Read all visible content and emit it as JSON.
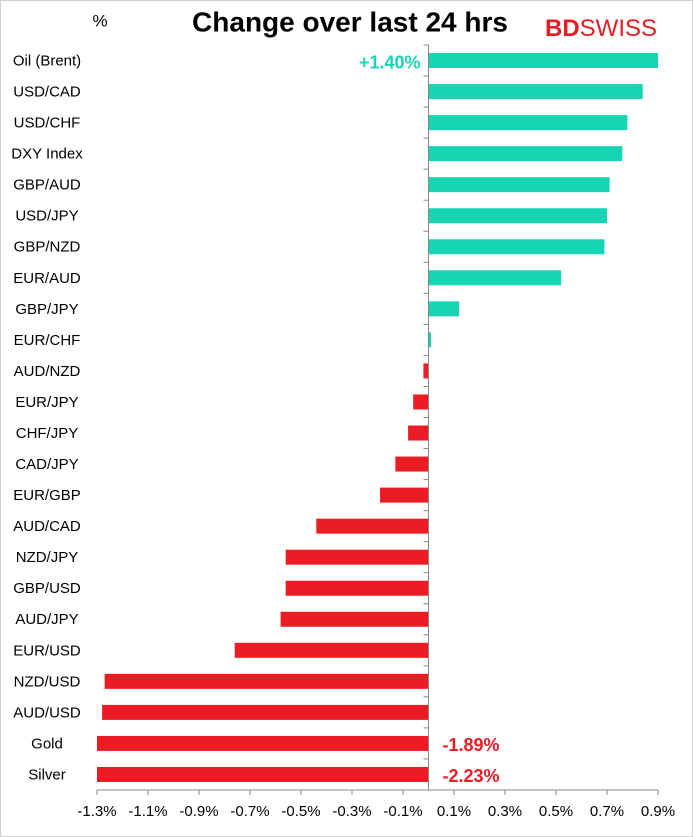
{
  "chart_data": {
    "type": "hbar",
    "unit_label": "%",
    "title": "Change over last 24 hrs",
    "logo": {
      "bold": "BD",
      "rest": "SWISS"
    },
    "categories": [
      "Oil (Brent)",
      "USD/CAD",
      "USD/CHF",
      "DXY Index",
      "GBP/AUD",
      "USD/JPY",
      "GBP/NZD",
      "EUR/AUD",
      "GBP/JPY",
      "EUR/CHF",
      "AUD/NZD",
      "EUR/JPY",
      "CHF/JPY",
      "CAD/JPY",
      "EUR/GBP",
      "AUD/CAD",
      "NZD/JPY",
      "GBP/USD",
      "AUD/JPY",
      "EUR/USD",
      "NZD/USD",
      "AUD/USD",
      "Gold",
      "Silver"
    ],
    "values": [
      1.4,
      0.84,
      0.78,
      0.76,
      0.71,
      0.7,
      0.69,
      0.52,
      0.12,
      0.01,
      -0.02,
      -0.06,
      -0.08,
      -0.13,
      -0.19,
      -0.44,
      -0.56,
      -0.56,
      -0.58,
      -0.76,
      -1.27,
      -1.28,
      -1.89,
      -2.23
    ],
    "value_labels": [
      "+1.40%",
      null,
      null,
      null,
      null,
      null,
      null,
      null,
      null,
      null,
      null,
      null,
      null,
      null,
      null,
      null,
      null,
      null,
      null,
      null,
      null,
      null,
      "-1.89%",
      "-2.23%"
    ],
    "positive_color": "#17d4b2",
    "negative_color": "#ec1c24",
    "xlim": [
      -1.3,
      0.9
    ],
    "xticks": [
      {
        "value": -1.3,
        "label": "-1.3%"
      },
      {
        "value": -1.1,
        "label": "-1.1%"
      },
      {
        "value": -0.9,
        "label": "-0.9%"
      },
      {
        "value": -0.7,
        "label": "-0.7%"
      },
      {
        "value": -0.5,
        "label": "-0.5%"
      },
      {
        "value": -0.3,
        "label": "-0.3%"
      },
      {
        "value": -0.1,
        "label": "-0.1%"
      },
      {
        "value": 0.1,
        "label": "0.1%"
      },
      {
        "value": 0.3,
        "label": "0.3%"
      },
      {
        "value": 0.5,
        "label": "0.5%"
      },
      {
        "value": 0.7,
        "label": "0.7%"
      },
      {
        "value": 0.9,
        "label": "0.9%"
      }
    ]
  }
}
